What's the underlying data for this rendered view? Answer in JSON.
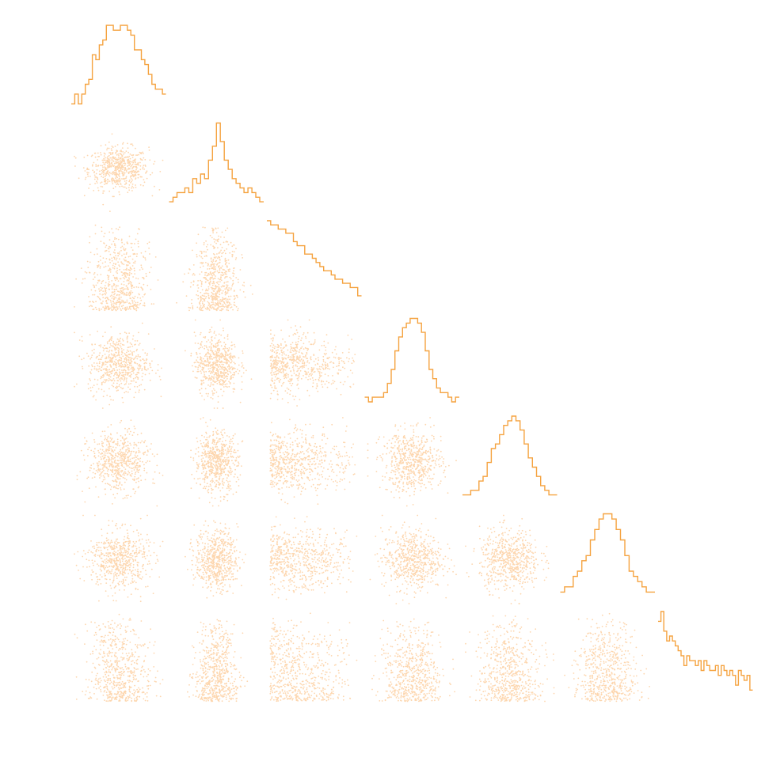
{
  "chart_data": {
    "type": "scatter",
    "kind": "corner-plot",
    "grid": false,
    "colors": {
      "histogram": "#f5a340",
      "points": "#fdd6ae",
      "background": "#ffffff"
    },
    "n_parameters": 7,
    "histograms": [
      {
        "variable": 0,
        "counts": [
          1,
          3,
          1,
          3,
          5,
          6,
          11,
          10,
          13,
          14,
          17,
          17,
          16,
          16,
          17,
          17,
          16,
          15,
          12,
          12,
          10,
          9,
          7,
          5,
          4,
          4,
          3
        ]
      },
      {
        "variable": 1,
        "counts": [
          1,
          2,
          3,
          3,
          4,
          3,
          6,
          5,
          7,
          6,
          10,
          13,
          18,
          14,
          10,
          8,
          6,
          5,
          4,
          3,
          4,
          3,
          2,
          1
        ]
      },
      {
        "variable": 2,
        "counts": [
          20,
          19,
          19,
          18,
          18,
          17,
          17,
          15,
          14,
          14,
          12,
          12,
          11,
          10,
          9,
          8,
          8,
          7,
          6,
          6,
          5,
          5,
          4,
          4,
          2
        ]
      },
      {
        "variable": 3,
        "counts": [
          1,
          0,
          1,
          1,
          1,
          2,
          4,
          7,
          11,
          14,
          16,
          17,
          18,
          18,
          17,
          15,
          11,
          7,
          5,
          3,
          2,
          2,
          1,
          0,
          1
        ]
      },
      {
        "variable": 4,
        "counts": [
          1,
          1,
          2,
          2,
          4,
          5,
          8,
          11,
          12,
          14,
          16,
          17,
          18,
          17,
          15,
          12,
          9,
          7,
          5,
          3,
          2,
          1,
          1
        ]
      },
      {
        "variable": 5,
        "counts": [
          1,
          2,
          2,
          4,
          5,
          7,
          8,
          11,
          13,
          15,
          16,
          16,
          15,
          13,
          11,
          8,
          5,
          4,
          3,
          2,
          1,
          1
        ]
      },
      {
        "variable": 6,
        "counts": [
          15,
          17,
          13,
          11,
          12,
          11,
          10,
          9,
          8,
          6,
          8,
          7,
          7,
          6,
          7,
          5,
          7,
          6,
          5,
          5,
          6,
          4,
          6,
          5,
          4,
          5,
          4,
          2,
          5,
          4,
          3,
          4,
          1
        ]
      }
    ],
    "marginal_shapes": [
      "normal",
      "peaked",
      "decreasing",
      "normal",
      "normal",
      "normal",
      "decreasing"
    ],
    "points_per_panel": 600
  }
}
